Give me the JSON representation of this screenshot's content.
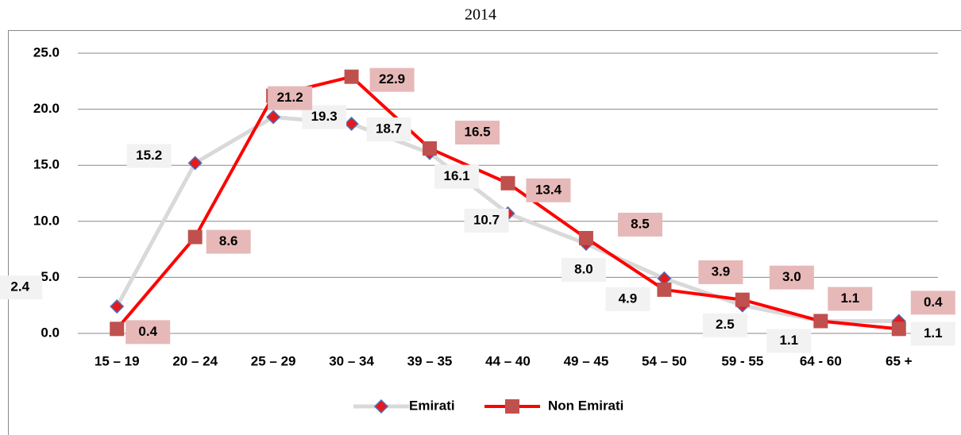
{
  "chart_data": {
    "type": "line",
    "title": "2014",
    "categories": [
      "15 – 19",
      "20 – 24",
      "25 – 29",
      "30 – 34",
      "39 – 35",
      "44 – 40",
      "49 – 45",
      "54 – 50",
      "59 - 55",
      "64 - 60",
      "65 +"
    ],
    "series": [
      {
        "name": "Emirati",
        "color": "#d9d9d9",
        "marker_color": "#e41a1c",
        "values": [
          2.4,
          15.2,
          19.3,
          18.7,
          16.1,
          10.7,
          8.0,
          4.9,
          2.5,
          1.1,
          1.1
        ],
        "value_labels": [
          "2.4",
          "15.2",
          "19.3",
          "18.7",
          "16.1",
          "10.7",
          "8.0",
          "4.9",
          "2.5",
          "1.1",
          "1.1"
        ]
      },
      {
        "name": "Non Emirati",
        "color": "#ff0000",
        "marker_color": "#c0504d",
        "values": [
          0.4,
          8.6,
          21.2,
          22.9,
          16.5,
          13.4,
          8.5,
          3.9,
          3.0,
          1.1,
          0.4
        ],
        "value_labels": [
          "0.4",
          "8.6",
          "21.2",
          "22.9",
          "16.5",
          "13.4",
          "8.5",
          "3.9",
          "3.0",
          "1.1",
          "0.4"
        ]
      }
    ],
    "ylim": [
      0,
      25
    ],
    "yticks": [
      {
        "value": 0,
        "label": "0.0"
      },
      {
        "value": 5,
        "label": "5.0"
      },
      {
        "value": 10,
        "label": "10.0"
      },
      {
        "value": 15,
        "label": "15.0"
      },
      {
        "value": 20,
        "label": "20.0"
      },
      {
        "value": 25,
        "label": "25.0"
      }
    ],
    "grid": true,
    "legend": "bottom"
  }
}
